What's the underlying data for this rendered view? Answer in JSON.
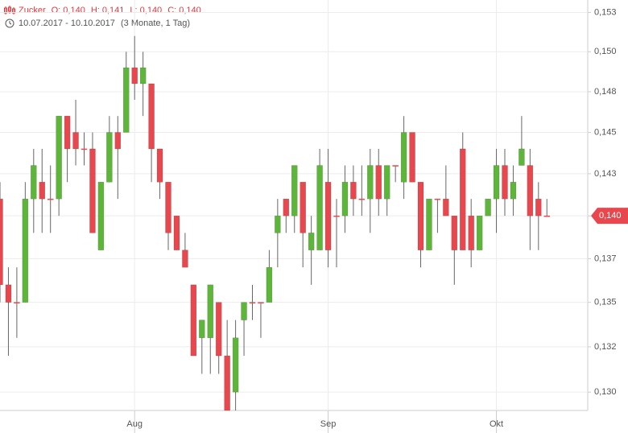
{
  "chart_data": {
    "type": "candlestick",
    "header": {
      "name": "Zucker",
      "items": [
        "O: 0,140",
        "H: 0,141",
        "L: 0,140",
        "C: 0,140"
      ],
      "range": "10.07.2017 - 10.10.2017",
      "period": "(3 Monate, 1 Tag)"
    },
    "log_scale": true,
    "grid": true,
    "up_color": "#5db63a",
    "down_color": "#e8484d",
    "ylim": [
      0.129,
      0.1533
    ],
    "yticks": [
      {
        "value": 0.1525,
        "label": "0,153"
      },
      {
        "value": 0.15,
        "label": "0,150"
      },
      {
        "value": 0.1475,
        "label": "0,148"
      },
      {
        "value": 0.145,
        "label": "0,145"
      },
      {
        "value": 0.1425,
        "label": "0,143"
      },
      {
        "value": 0.14,
        "label": "0,140"
      },
      {
        "value": 0.1375,
        "label": "0,137"
      },
      {
        "value": 0.135,
        "label": "0,135"
      },
      {
        "value": 0.1325,
        "label": "0,132"
      },
      {
        "value": 0.13,
        "label": "0,130"
      }
    ],
    "last_price": {
      "value": 0.14,
      "label": "0,140"
    },
    "categories": [
      null,
      null,
      null,
      null,
      null,
      null,
      null,
      null,
      null,
      null,
      null,
      null,
      null,
      null,
      null,
      null,
      "Aug",
      null,
      null,
      null,
      null,
      null,
      null,
      null,
      null,
      null,
      null,
      null,
      null,
      null,
      null,
      null,
      null,
      null,
      null,
      null,
      null,
      null,
      null,
      "Sep",
      null,
      null,
      null,
      null,
      null,
      null,
      null,
      null,
      null,
      null,
      null,
      null,
      null,
      null,
      null,
      null,
      null,
      null,
      null,
      "Okt",
      null,
      null,
      null,
      null,
      null,
      null
    ],
    "open": [
      0.141,
      0.136,
      0.135,
      0.135,
      0.141,
      0.142,
      0.141,
      0.141,
      0.146,
      0.145,
      0.144,
      0.144,
      0.138,
      0.142,
      0.145,
      0.145,
      0.149,
      0.148,
      0.148,
      0.144,
      0.142,
      0.14,
      0.138,
      0.136,
      0.133,
      0.133,
      0.135,
      0.132,
      0.13,
      0.134,
      0.135,
      0.135,
      0.135,
      0.139,
      0.141,
      0.14,
      0.142,
      0.138,
      0.138,
      0.142,
      0.14,
      0.14,
      0.142,
      0.141,
      0.141,
      0.143,
      0.141,
      0.143,
      0.142,
      0.145,
      0.142,
      0.138,
      0.141,
      0.141,
      0.14,
      0.144,
      0.14,
      0.138,
      0.14,
      0.141,
      0.143,
      0.141,
      0.143,
      0.143,
      0.141,
      0.14
    ],
    "high": [
      0.142,
      0.137,
      0.137,
      0.142,
      0.144,
      0.144,
      0.143,
      0.146,
      0.146,
      0.147,
      0.145,
      0.145,
      0.142,
      0.146,
      0.146,
      0.15,
      0.151,
      0.15,
      0.148,
      0.144,
      0.142,
      0.14,
      0.139,
      0.136,
      0.134,
      0.136,
      0.135,
      0.134,
      0.134,
      0.135,
      0.136,
      0.135,
      0.138,
      0.141,
      0.141,
      0.143,
      0.142,
      0.14,
      0.144,
      0.144,
      0.141,
      0.143,
      0.143,
      0.143,
      0.144,
      0.144,
      0.143,
      0.143,
      0.146,
      0.145,
      0.142,
      0.141,
      0.141,
      0.143,
      0.14,
      0.145,
      0.141,
      0.14,
      0.141,
      0.144,
      0.144,
      0.143,
      0.146,
      0.144,
      0.142,
      0.141
    ],
    "low": [
      0.135,
      0.132,
      0.133,
      0.135,
      0.139,
      0.139,
      0.139,
      0.14,
      0.142,
      0.143,
      0.143,
      0.139,
      0.138,
      0.142,
      0.141,
      0.145,
      0.147,
      0.146,
      0.142,
      0.141,
      0.138,
      0.138,
      0.137,
      0.132,
      0.131,
      0.131,
      0.131,
      0.129,
      0.129,
      0.132,
      0.134,
      0.133,
      0.135,
      0.137,
      0.139,
      0.139,
      0.137,
      0.136,
      0.138,
      0.137,
      0.137,
      0.139,
      0.14,
      0.14,
      0.139,
      0.14,
      0.14,
      0.142,
      0.141,
      0.142,
      0.137,
      0.138,
      0.139,
      0.14,
      0.136,
      0.138,
      0.137,
      0.138,
      0.14,
      0.139,
      0.14,
      0.14,
      0.143,
      0.138,
      0.138,
      0.14
    ],
    "close": [
      0.136,
      0.135,
      0.135,
      0.141,
      0.143,
      0.141,
      0.141,
      0.146,
      0.144,
      0.144,
      0.144,
      0.139,
      0.142,
      0.145,
      0.144,
      0.149,
      0.148,
      0.149,
      0.144,
      0.142,
      0.139,
      0.138,
      0.137,
      0.132,
      0.134,
      0.136,
      0.132,
      0.129,
      0.133,
      0.135,
      0.135,
      0.135,
      0.137,
      0.14,
      0.14,
      0.143,
      0.139,
      0.139,
      0.143,
      0.138,
      0.14,
      0.142,
      0.141,
      0.141,
      0.143,
      0.141,
      0.143,
      0.143,
      0.145,
      0.142,
      0.138,
      0.141,
      0.141,
      0.14,
      0.138,
      0.138,
      0.138,
      0.14,
      0.141,
      0.143,
      0.141,
      0.142,
      0.144,
      0.14,
      0.14,
      0.14
    ]
  }
}
